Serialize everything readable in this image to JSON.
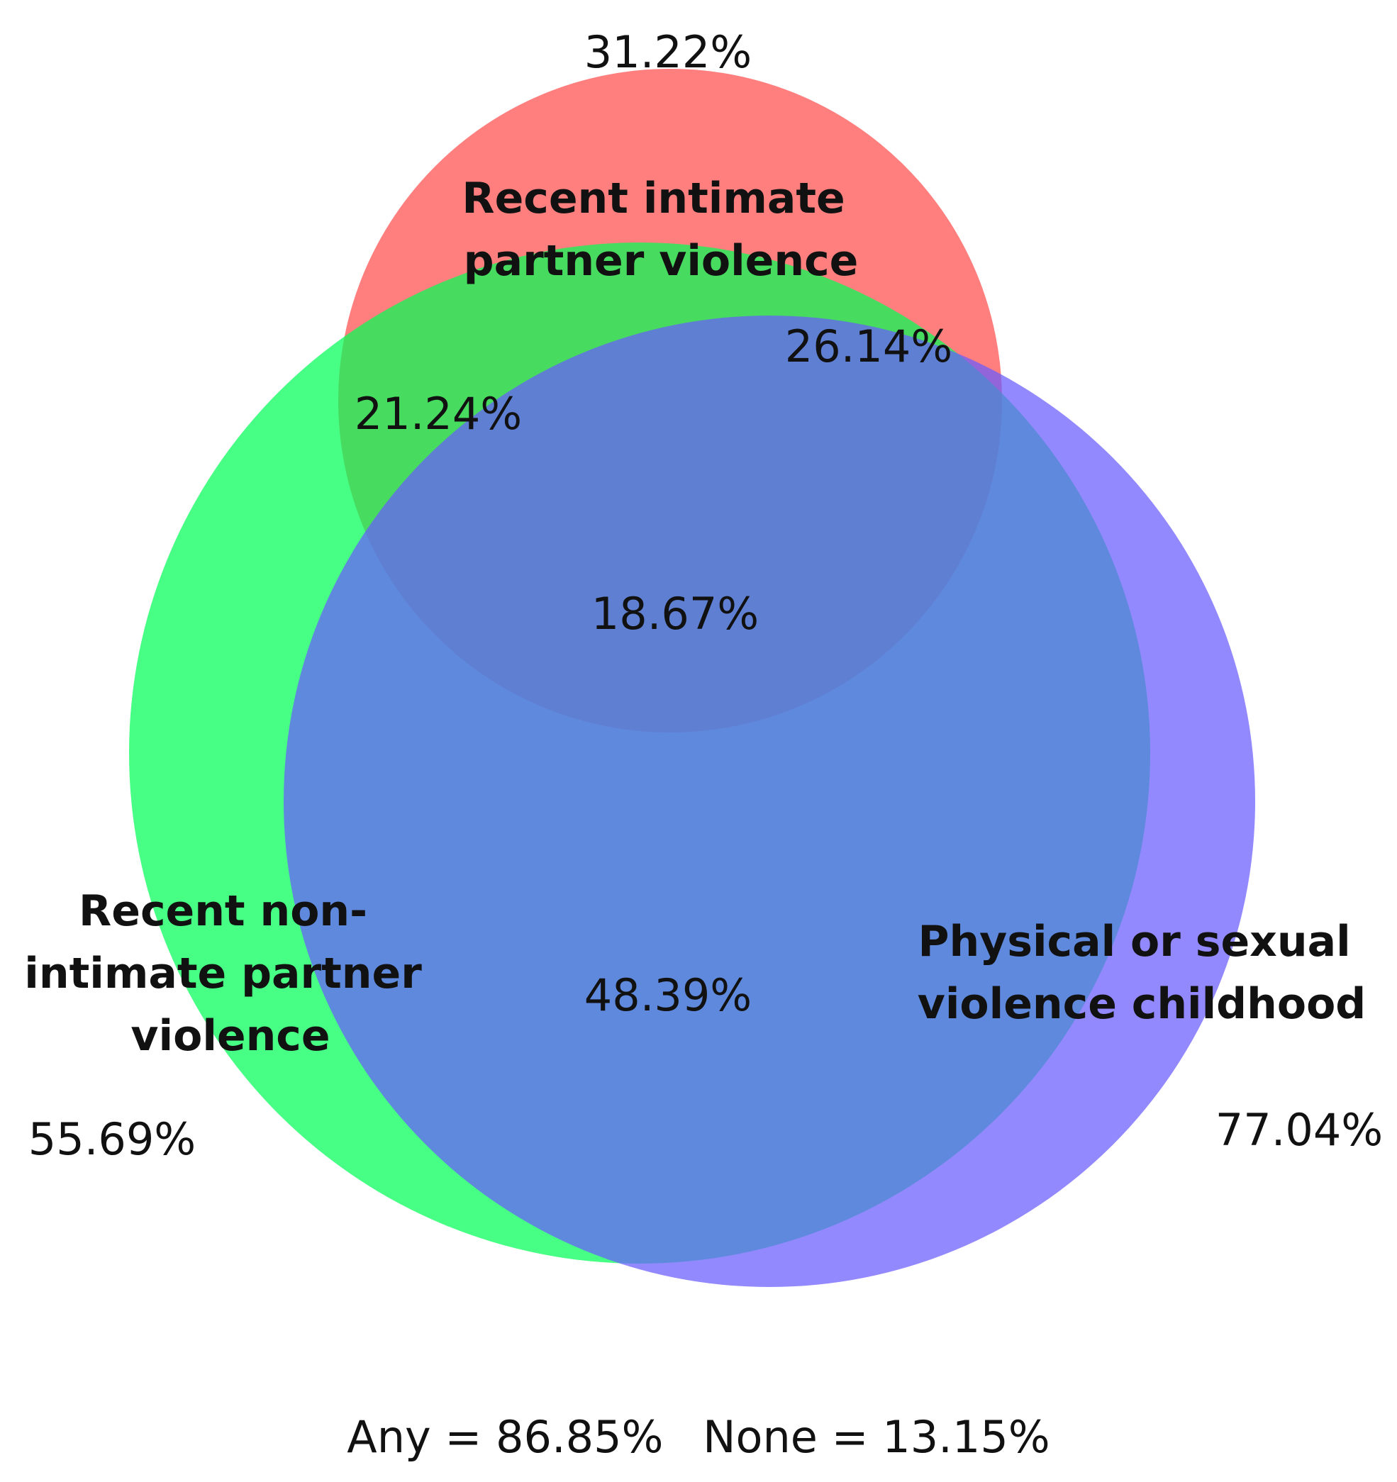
{
  "sets": {
    "ipv": {
      "label_lines": [
        "Recent intimate",
        "partner violence"
      ],
      "total": "31.22%",
      "color": "#ff4d4d"
    },
    "non_ipv": {
      "label_lines": [
        "Recent non-",
        "intimate partner",
        "violence"
      ],
      "total": "55.69%",
      "color": "#00ff55"
    },
    "childhood": {
      "label_lines": [
        "Physical or sexual",
        "violence childhood"
      ],
      "total": "77.04%",
      "color": "#6a5cff"
    }
  },
  "overlaps": {
    "ipv_and_non_ipv": "21.24%",
    "ipv_and_childhood": "26.14%",
    "all_three": "18.67%",
    "non_ipv_and_childhood": "48.39%"
  },
  "footer": {
    "any": "Any = 86.85%",
    "none": "None = 13.15%"
  }
}
